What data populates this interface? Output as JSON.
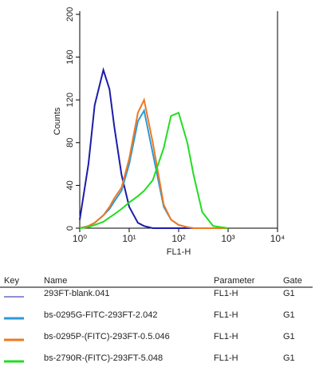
{
  "chart_data": {
    "type": "line",
    "x_label": "FL1-H",
    "y_label": "Counts",
    "log_x": true,
    "xlim": [
      1,
      10000
    ],
    "xticks": [
      {
        "value": 1,
        "label": "10⁰"
      },
      {
        "value": 10,
        "label": "10¹"
      },
      {
        "value": 100,
        "label": "10²"
      },
      {
        "value": 1000,
        "label": "10³"
      },
      {
        "value": 10000,
        "label": "10⁴"
      }
    ],
    "ylim": [
      0,
      200
    ],
    "yticks": [
      0,
      40,
      80,
      120,
      160,
      200
    ],
    "x": [
      1,
      1.5,
      2,
      3,
      4,
      5,
      7,
      10,
      15,
      20,
      30,
      50,
      70,
      100,
      150,
      200,
      300,
      500,
      1000
    ],
    "key_headers": [
      "Key",
      "Name",
      "Parameter",
      "Gate"
    ],
    "series": [
      {
        "name": "293FT-blank.041",
        "color": "#1c1ca8",
        "parameter": "FL1-H",
        "gate": "G1",
        "values": [
          8,
          60,
          115,
          148,
          130,
          95,
          50,
          20,
          5,
          2,
          0,
          0,
          0,
          0,
          0,
          0,
          0,
          0,
          0
        ]
      },
      {
        "name": "bs-0295G-FITC-293FT-2.042",
        "color": "#2a9ad8",
        "parameter": "FL1-H",
        "gate": "G1",
        "values": [
          0,
          2,
          5,
          12,
          18,
          25,
          35,
          60,
          100,
          110,
          70,
          20,
          8,
          3,
          1,
          0,
          0,
          0,
          0
        ]
      },
      {
        "name": "bs-0295P-(FITC)-293FT-0.5.046",
        "color": "#f07820",
        "parameter": "FL1-H",
        "gate": "G1",
        "values": [
          0,
          2,
          5,
          12,
          20,
          28,
          38,
          65,
          108,
          120,
          80,
          22,
          8,
          3,
          1,
          0,
          0,
          0,
          0
        ]
      },
      {
        "name": "bs-2790R-(FITC)-293FT-5.048",
        "color": "#22dd22",
        "parameter": "FL1-H",
        "gate": "G1",
        "values": [
          0,
          1,
          3,
          6,
          10,
          13,
          18,
          24,
          30,
          35,
          45,
          75,
          105,
          108,
          80,
          50,
          15,
          2,
          0
        ]
      }
    ]
  }
}
